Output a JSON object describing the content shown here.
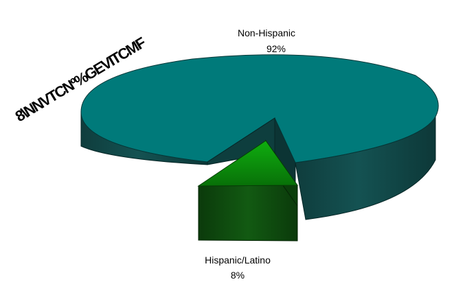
{
  "chart_data": {
    "type": "pie",
    "title": "8\\NNVTCNº%GEVITCMF",
    "categories": [
      "Non-Hispanic",
      "Hispanic/Latino"
    ],
    "values": [
      92,
      8
    ],
    "value_labels": [
      "92%",
      "8%"
    ],
    "three_d": true,
    "exploded": [
      "Hispanic/Latino"
    ],
    "legend": "none",
    "colors": {
      "Non-Hispanic": {
        "top": "#007a7a",
        "side": "#0a4545"
      },
      "Hispanic/Latino": {
        "top": "#0b9a0b",
        "side": "#0f4a0f"
      }
    }
  }
}
